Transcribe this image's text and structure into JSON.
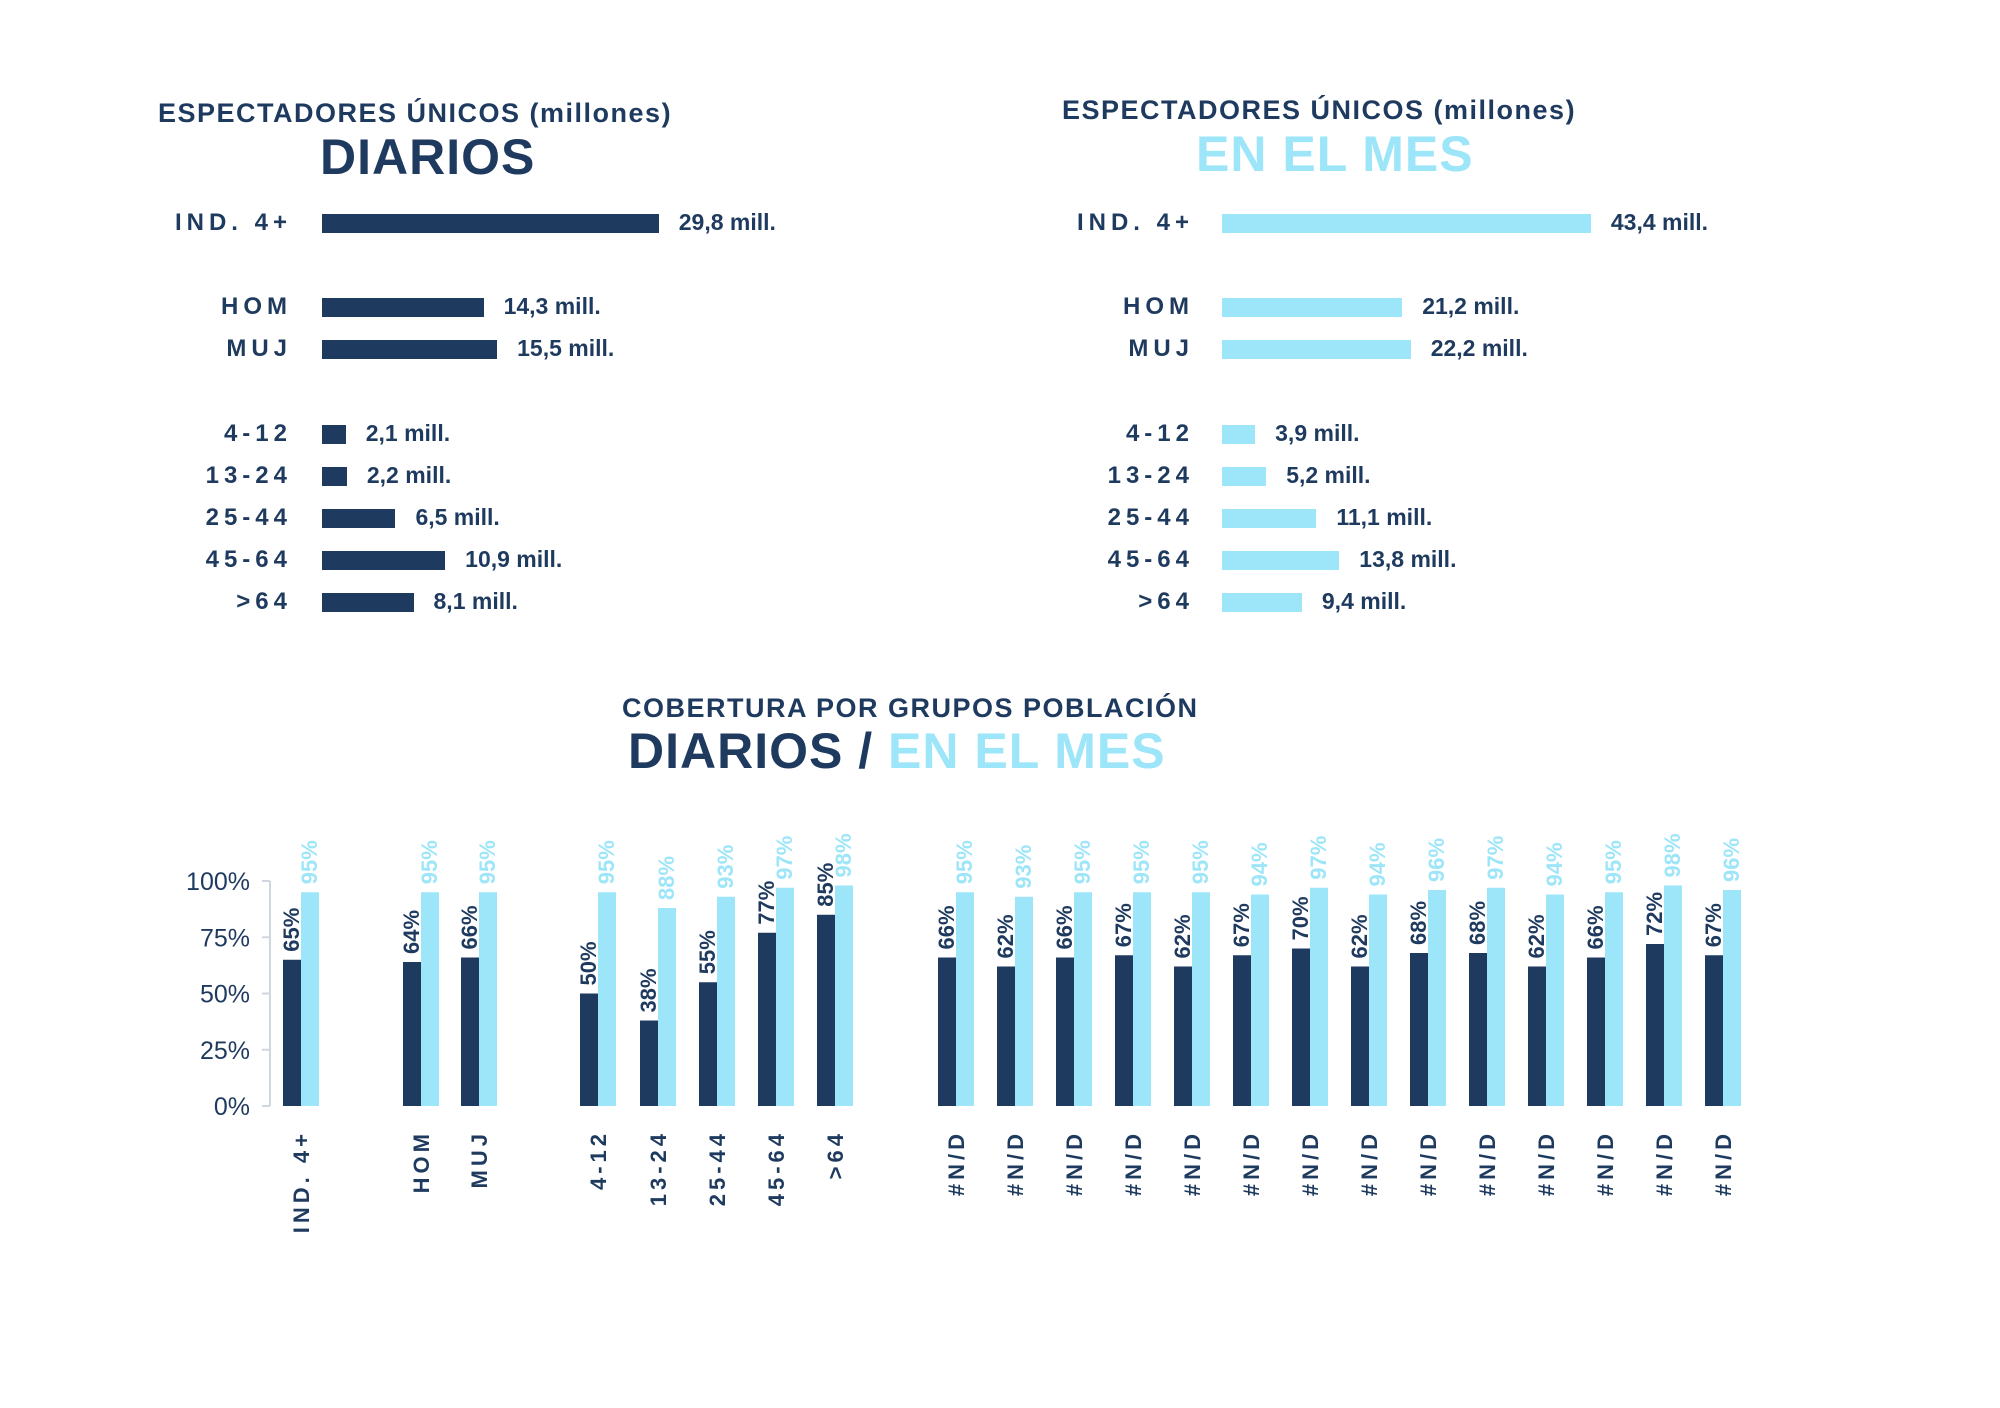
{
  "colors": {
    "diarios": "#1f3a5f",
    "en_el_mes": "#9de5f8",
    "axis": "#d0d6e0",
    "text": "#1f3a5f"
  },
  "chart_data": [
    {
      "type": "bar",
      "orientation": "horizontal",
      "title": "DIARIOS",
      "subtitle": "ESPECTADORES ÚNICOS (millones)",
      "unit": "millones",
      "categories": [
        "IND. 4+",
        "HOM",
        "MUJ",
        "4-12",
        "13-24",
        "25-44",
        "45-64",
        ">64"
      ],
      "values": [
        29.8,
        14.3,
        15.5,
        2.1,
        2.2,
        6.5,
        10.9,
        8.1
      ],
      "value_labels": [
        "29,8 mill.",
        "14,3 mill.",
        "15,5 mill.",
        "2,1 mill.",
        "2,2 mill.",
        "6,5 mill.",
        "10,9 mill.",
        "8,1 mill."
      ],
      "color": "#1f3a5f"
    },
    {
      "type": "bar",
      "orientation": "horizontal",
      "title": "EN EL MES",
      "subtitle": "ESPECTADORES ÚNICOS (millones)",
      "unit": "millones",
      "categories": [
        "IND. 4+",
        "HOM",
        "MUJ",
        "4-12",
        "13-24",
        "25-44",
        "45-64",
        ">64"
      ],
      "values": [
        43.4,
        21.2,
        22.2,
        3.9,
        5.2,
        11.1,
        13.8,
        9.4
      ],
      "value_labels": [
        "43,4 mill.",
        "21,2 mill.",
        "22,2 mill.",
        "3,9 mill.",
        "5,2 mill.",
        "11,1 mill.",
        "13,8 mill.",
        "9,4 mill."
      ],
      "color": "#9de5f8"
    },
    {
      "type": "bar",
      "orientation": "vertical",
      "subtitle": "COBERTURA POR GRUPOS POBLACIÓN",
      "title_part1": "DIARIOS",
      "title_sep": " / ",
      "title_part2": "EN EL MES",
      "xlabel": "",
      "ylabel": "",
      "ylim": [
        0,
        100
      ],
      "yticks": [
        "0%",
        "25%",
        "50%",
        "75%",
        "100%"
      ],
      "ytick_values": [
        0,
        25,
        50,
        75,
        100
      ],
      "grid": false,
      "categories": [
        "IND. 4+",
        "HOM",
        "MUJ",
        "4-12",
        "13-24",
        "25-44",
        "45-64",
        ">64",
        "#N/D",
        "#N/D",
        "#N/D",
        "#N/D",
        "#N/D",
        "#N/D",
        "#N/D",
        "#N/D",
        "#N/D",
        "#N/D",
        "#N/D",
        "#N/D",
        "#N/D",
        "#N/D"
      ],
      "category_groups": [
        [
          0
        ],
        [
          1,
          2
        ],
        [
          3,
          4,
          5,
          6,
          7
        ],
        [
          8,
          9,
          10,
          11,
          12,
          13,
          14,
          15,
          16,
          17,
          18,
          19,
          20,
          21
        ]
      ],
      "series": [
        {
          "name": "DIARIOS",
          "color": "#1f3a5f",
          "values": [
            65,
            64,
            66,
            50,
            38,
            55,
            77,
            85,
            66,
            62,
            66,
            67,
            62,
            67,
            70,
            62,
            68,
            68,
            62,
            66,
            72,
            67
          ],
          "labels": [
            "65%",
            "64%",
            "66%",
            "50%",
            "38%",
            "55%",
            "77%",
            "85%",
            "66%",
            "62%",
            "66%",
            "67%",
            "62%",
            "67%",
            "70%",
            "62%",
            "68%",
            "68%",
            "62%",
            "66%",
            "72%",
            "67%"
          ]
        },
        {
          "name": "EN EL MES",
          "color": "#9de5f8",
          "values": [
            95,
            95,
            95,
            95,
            88,
            93,
            97,
            98,
            95,
            93,
            95,
            95,
            95,
            94,
            97,
            94,
            96,
            97,
            94,
            95,
            98,
            96
          ],
          "labels": [
            "95%",
            "95%",
            "95%",
            "95%",
            "88%",
            "93%",
            "97%",
            "98%",
            "95%",
            "93%",
            "95%",
            "95%",
            "95%",
            "94%",
            "97%",
            "94%",
            "96%",
            "97%",
            "94%",
            "95%",
            "98%",
            "96%"
          ]
        }
      ]
    }
  ]
}
